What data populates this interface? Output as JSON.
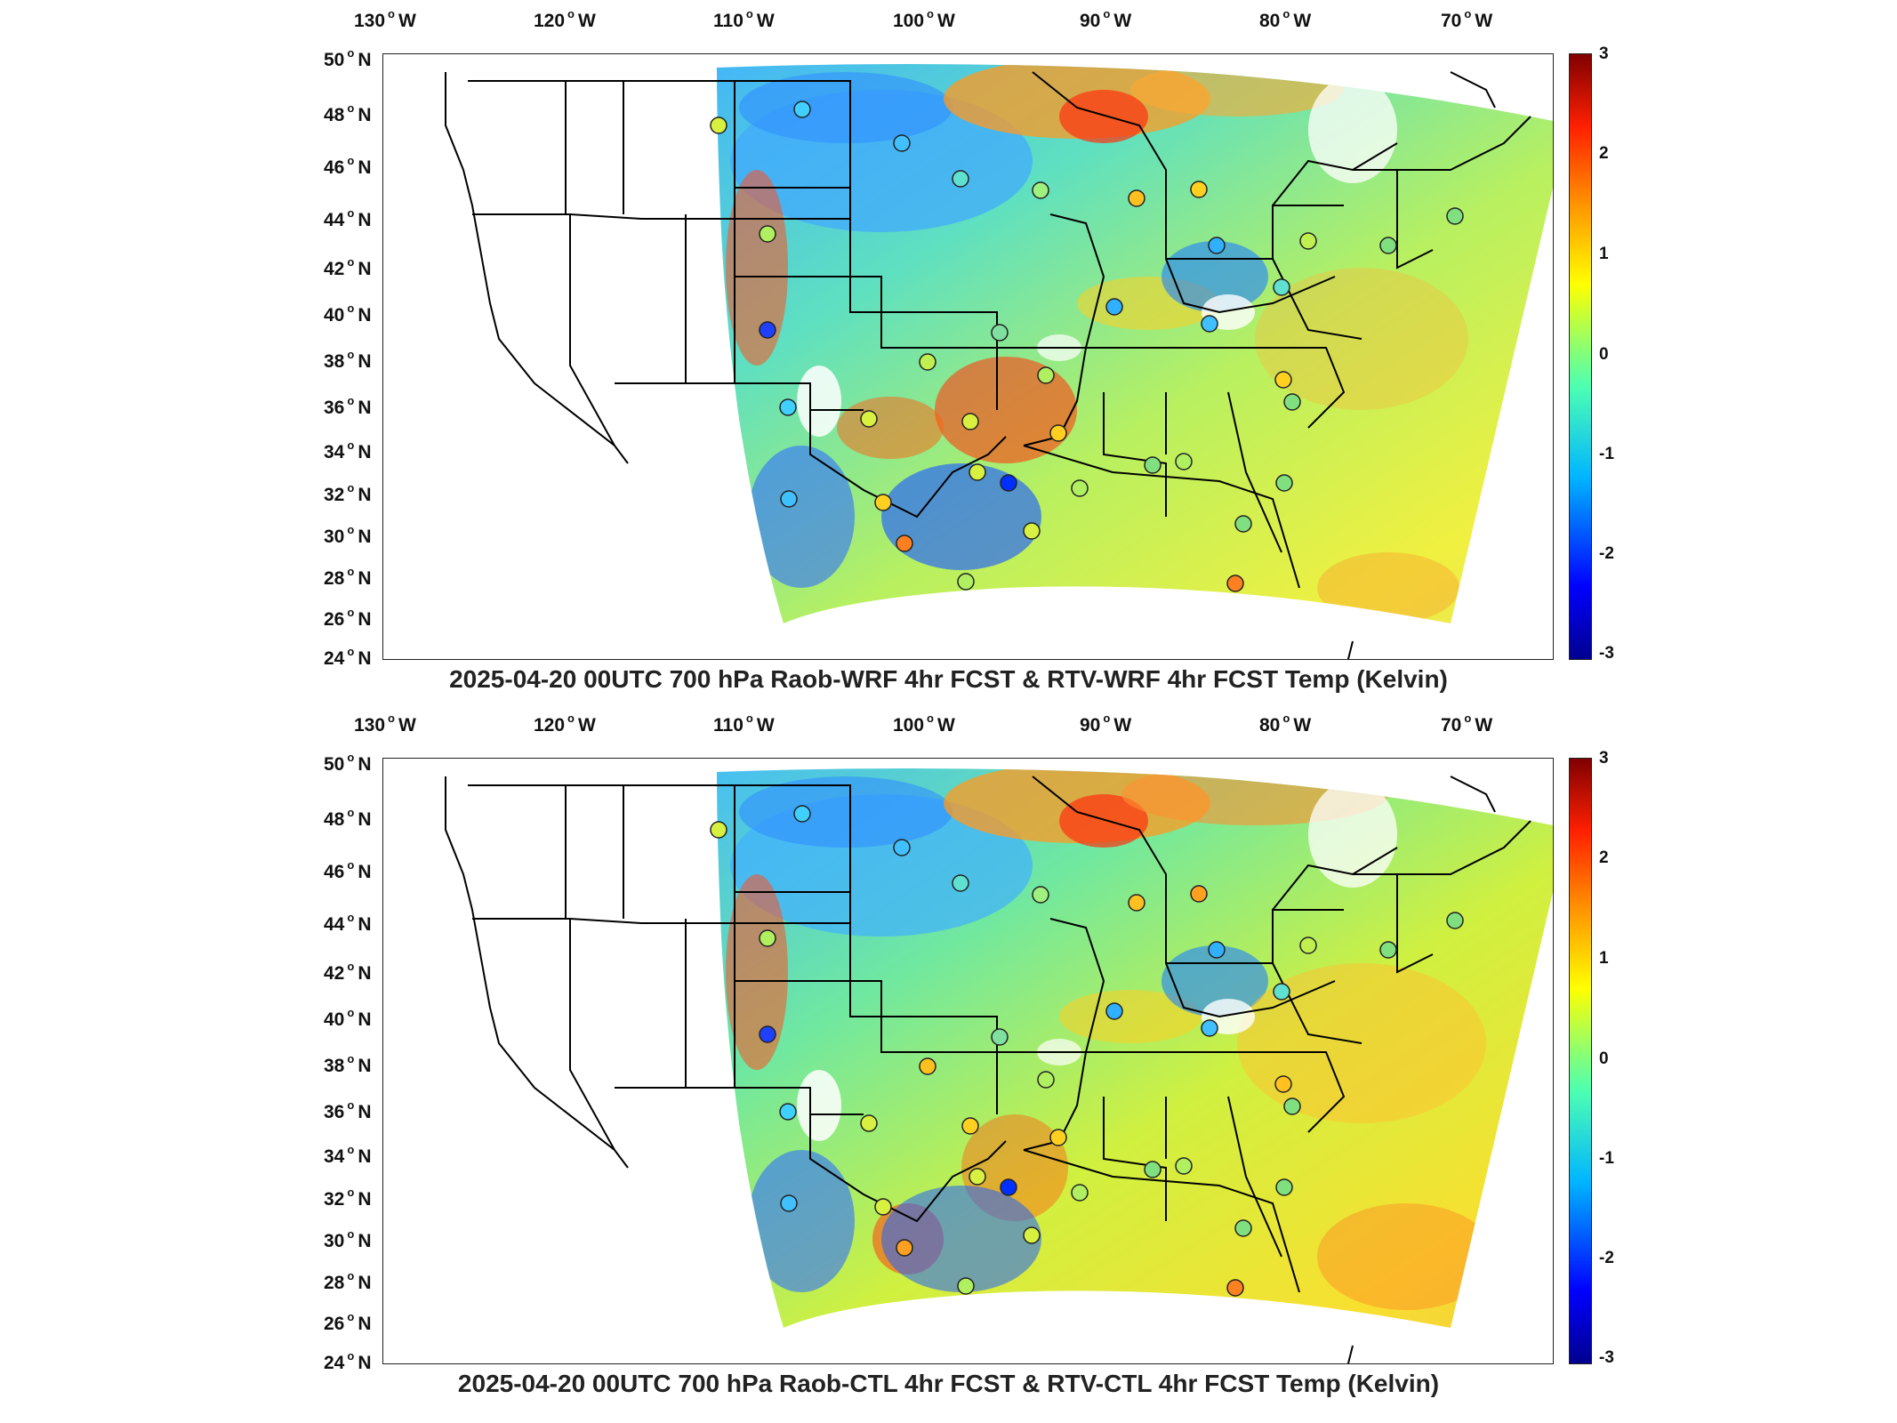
{
  "panels": [
    {
      "title": "2025-04-20 00UTC 700 hPa Raob-WRF 4hr FCST & RTV-WRF 4hr FCST Temp (Kelvin)",
      "lon_labels": [
        "130",
        "120",
        "110",
        "100",
        "90",
        "80",
        "70"
      ],
      "lon_suffix": "W",
      "lat_labels": [
        "50",
        "48",
        "46",
        "44",
        "42",
        "40",
        "38",
        "36",
        "34",
        "32",
        "30",
        "28",
        "26",
        "24"
      ],
      "lat_suffix": "N",
      "colorbar_ticks": [
        "3",
        "2",
        "1",
        "0",
        "-1",
        "-2",
        "-3"
      ]
    },
    {
      "title": "2025-04-20 00UTC 700 hPa Raob-CTL 4hr FCST & RTV-CTL 4hr FCST Temp (Kelvin)",
      "lon_labels": [
        "130",
        "120",
        "110",
        "100",
        "90",
        "80",
        "70"
      ],
      "lon_suffix": "W",
      "lat_labels": [
        "50",
        "48",
        "46",
        "44",
        "42",
        "40",
        "38",
        "36",
        "34",
        "32",
        "30",
        "28",
        "26",
        "24"
      ],
      "lat_suffix": "N",
      "colorbar_ticks": [
        "3",
        "2",
        "1",
        "0",
        "-1",
        "-2",
        "-3"
      ]
    }
  ],
  "colors": {
    "scale_min": "#00008f",
    "scale_mid": "#7dff80",
    "scale_max": "#800000"
  }
}
